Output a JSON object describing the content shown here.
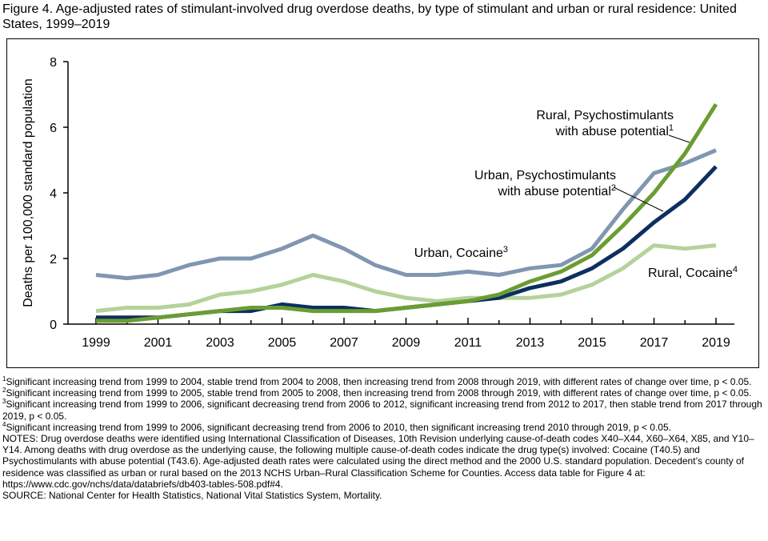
{
  "title": "Figure 4. Age-adjusted rates of stimulant-involved drug overdose deaths, by type of stimulant and urban or rural residence: United States, 1999–2019",
  "chart_data": {
    "type": "line",
    "title": "Figure 4. Age-adjusted rates of stimulant-involved drug overdose deaths, by type of stimulant and urban or rural residence: United States, 1999–2019",
    "xlabel": "",
    "ylabel": "Deaths per 100,000 standard population",
    "ylim": [
      0,
      8
    ],
    "xlim": [
      1999,
      2019
    ],
    "yticks": [
      "0",
      "2",
      "4",
      "6",
      "8"
    ],
    "xticks": [
      "1999",
      "2001",
      "2003",
      "2005",
      "2007",
      "2009",
      "2011",
      "2013",
      "2015",
      "2017",
      "2019"
    ],
    "x": [
      1999,
      2000,
      2001,
      2002,
      2003,
      2004,
      2005,
      2006,
      2007,
      2008,
      2009,
      2010,
      2011,
      2012,
      2013,
      2014,
      2015,
      2016,
      2017,
      2018,
      2019
    ],
    "series": [
      {
        "name": "Urban, Cocaine",
        "sup": "3",
        "color": "#8096b2",
        "values": [
          1.5,
          1.4,
          1.5,
          1.8,
          2.0,
          2.0,
          2.3,
          2.7,
          2.3,
          1.8,
          1.5,
          1.5,
          1.6,
          1.5,
          1.7,
          1.8,
          2.3,
          3.5,
          4.6,
          4.9,
          5.3
        ]
      },
      {
        "name": "Rural, Cocaine",
        "sup": "4",
        "color": "#b5d29a",
        "values": [
          0.4,
          0.5,
          0.5,
          0.6,
          0.9,
          1.0,
          1.2,
          1.5,
          1.3,
          1.0,
          0.8,
          0.7,
          0.8,
          0.8,
          0.8,
          0.9,
          1.2,
          1.7,
          2.4,
          2.3,
          2.4
        ]
      },
      {
        "name": "Urban, Psychostimulants with abuse potential",
        "sup": "2",
        "color": "#0c2f5f",
        "values": [
          0.2,
          0.2,
          0.2,
          0.3,
          0.4,
          0.4,
          0.6,
          0.5,
          0.5,
          0.4,
          0.5,
          0.6,
          0.7,
          0.8,
          1.1,
          1.3,
          1.7,
          2.3,
          3.1,
          3.8,
          4.8
        ]
      },
      {
        "name": "Rural, Psychostimulants with abuse potential",
        "sup": "1",
        "color": "#6a9d32",
        "values": [
          0.1,
          0.1,
          0.2,
          0.3,
          0.4,
          0.5,
          0.5,
          0.4,
          0.4,
          0.4,
          0.5,
          0.6,
          0.7,
          0.9,
          1.3,
          1.6,
          2.1,
          3.0,
          4.0,
          5.2,
          6.7
        ]
      }
    ],
    "labels": {
      "rural_psycho": [
        "Rural, Psychostimulants",
        "with abuse potential",
        "1"
      ],
      "urban_psycho": [
        "Urban, Psychostimulants",
        "with abuse potential",
        "2"
      ],
      "urban_cocaine": [
        "Urban, Cocaine",
        "3"
      ],
      "rural_cocaine": [
        "Rural, Cocaine",
        "4"
      ]
    }
  },
  "notes": [
    {
      "sup": "1",
      "text": "Significant increasing trend from 1999 to 2004, stable trend from 2004 to 2008, then increasing trend from 2008 through 2019, with different rates of change over time, p < 0.05."
    },
    {
      "sup": "2",
      "text": "Significant increasing trend from 1999 to 2005, stable trend from 2005 to 2008, then increasing trend from 2008 through 2019, with different rates of change over time, p < 0.05."
    },
    {
      "sup": "3",
      "text": "Significant increasing trend from 1999 to 2006, significant decreasing trend from 2006 to 2012, significant increasing trend from 2012 to 2017, then stable trend from 2017 through 2019, p < 0.05."
    },
    {
      "sup": "4",
      "text": "Significant increasing trend from 1999 to 2006, significant decreasing trend from 2006 to 2010, then significant increasing trend 2010 through 2019, p < 0.05."
    },
    {
      "sup": "",
      "text": "NOTES: Drug overdose deaths were identified using International Classification of Diseases, 10th Revision underlying cause-of-death codes X40–X44, X60–X64, X85, and Y10–Y14. Among deaths with drug overdose as the underlying cause, the following multiple cause-of-death codes indicate the drug type(s) involved: Cocaine (T40.5) and Psychostimulants with abuse potential (T43.6). Age-adjusted death rates were calculated using the direct method and the 2000 U.S. standard population. Decedent’s county of residence was classified as urban or rural based on the 2013 NCHS Urban–Rural Classification Scheme for Counties. Access data table for Figure 4 at: https://www.cdc.gov/nchs/data/databriefs/db403-tables-508.pdf#4."
    },
    {
      "sup": "",
      "text": "SOURCE: National Center for Health Statistics, National Vital Statistics System, Mortality."
    }
  ]
}
